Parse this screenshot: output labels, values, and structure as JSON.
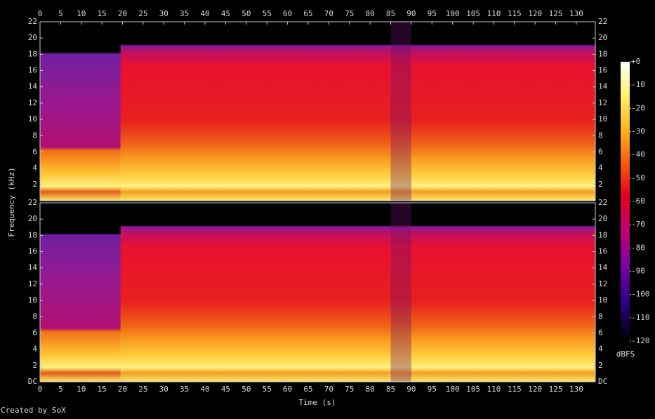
{
  "chart_data": {
    "type": "spectrogram",
    "x_label": "Time (s)",
    "y_label": "Frequency (kHz)",
    "xlim": [
      0,
      134.6
    ],
    "xticks": [
      0,
      5,
      10,
      15,
      20,
      25,
      30,
      35,
      40,
      45,
      50,
      55,
      60,
      65,
      70,
      75,
      80,
      85,
      90,
      95,
      100,
      105,
      110,
      115,
      120,
      125,
      130
    ],
    "channels": [
      {
        "ylim": [
          0,
          22
        ],
        "yticks": [
          2,
          4,
          6,
          8,
          10,
          12,
          14,
          16,
          18,
          20,
          22
        ]
      },
      {
        "ylim": [
          0,
          22
        ],
        "yticks": [
          {
            "value": 0,
            "label": "DC"
          },
          2,
          4,
          6,
          8,
          10,
          12,
          14,
          16,
          18,
          20,
          22
        ]
      }
    ],
    "colorbar": {
      "label": "dBFS",
      "lim": [
        -120,
        0
      ],
      "ticks": [
        {
          "value": 0,
          "label": "+0"
        },
        -10,
        -20,
        -30,
        -40,
        -50,
        -60,
        -70,
        -80,
        -90,
        -100,
        -110,
        -120
      ]
    },
    "credit": "Created by SoX"
  }
}
